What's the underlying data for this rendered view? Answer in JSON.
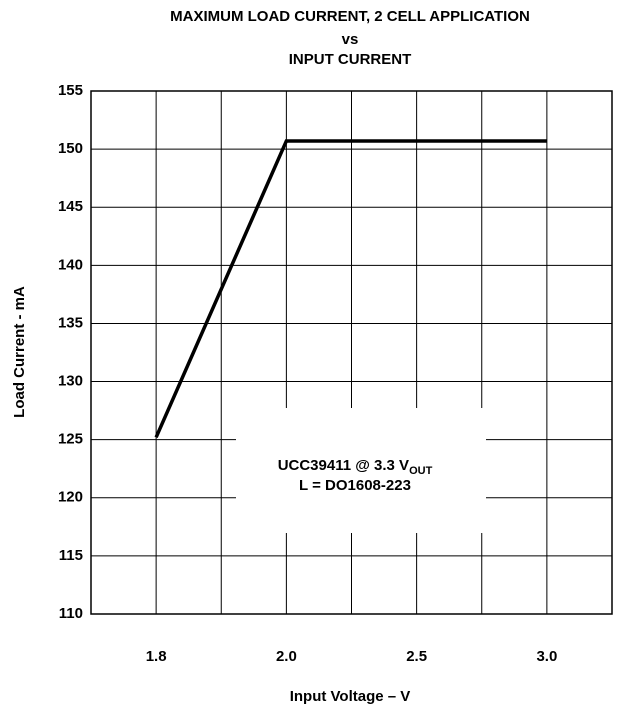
{
  "chart_data": {
    "type": "line",
    "title": [
      "MAXIMUM LOAD CURRENT, 2 CELL APPLICATION",
      "vs",
      "INPUT CURRENT"
    ],
    "x_label": "Input Voltage – V",
    "y_label": "Load Current - mA",
    "categories": [
      "1.8",
      "2.0",
      "2.5",
      "3.0"
    ],
    "series": [
      {
        "name": "UCC39411",
        "color": "#000000",
        "values": [
          125.2,
          150.7,
          150.7,
          150.7
        ]
      }
    ],
    "ylim": [
      110,
      155
    ],
    "yticks": [
      110,
      115,
      120,
      125,
      130,
      135,
      140,
      145,
      150,
      155
    ],
    "grid": true,
    "annotation": {
      "line1": "UCC39411 @ 3.3 V",
      "sub": "OUT",
      "line2": "L = DO1608-223"
    }
  }
}
